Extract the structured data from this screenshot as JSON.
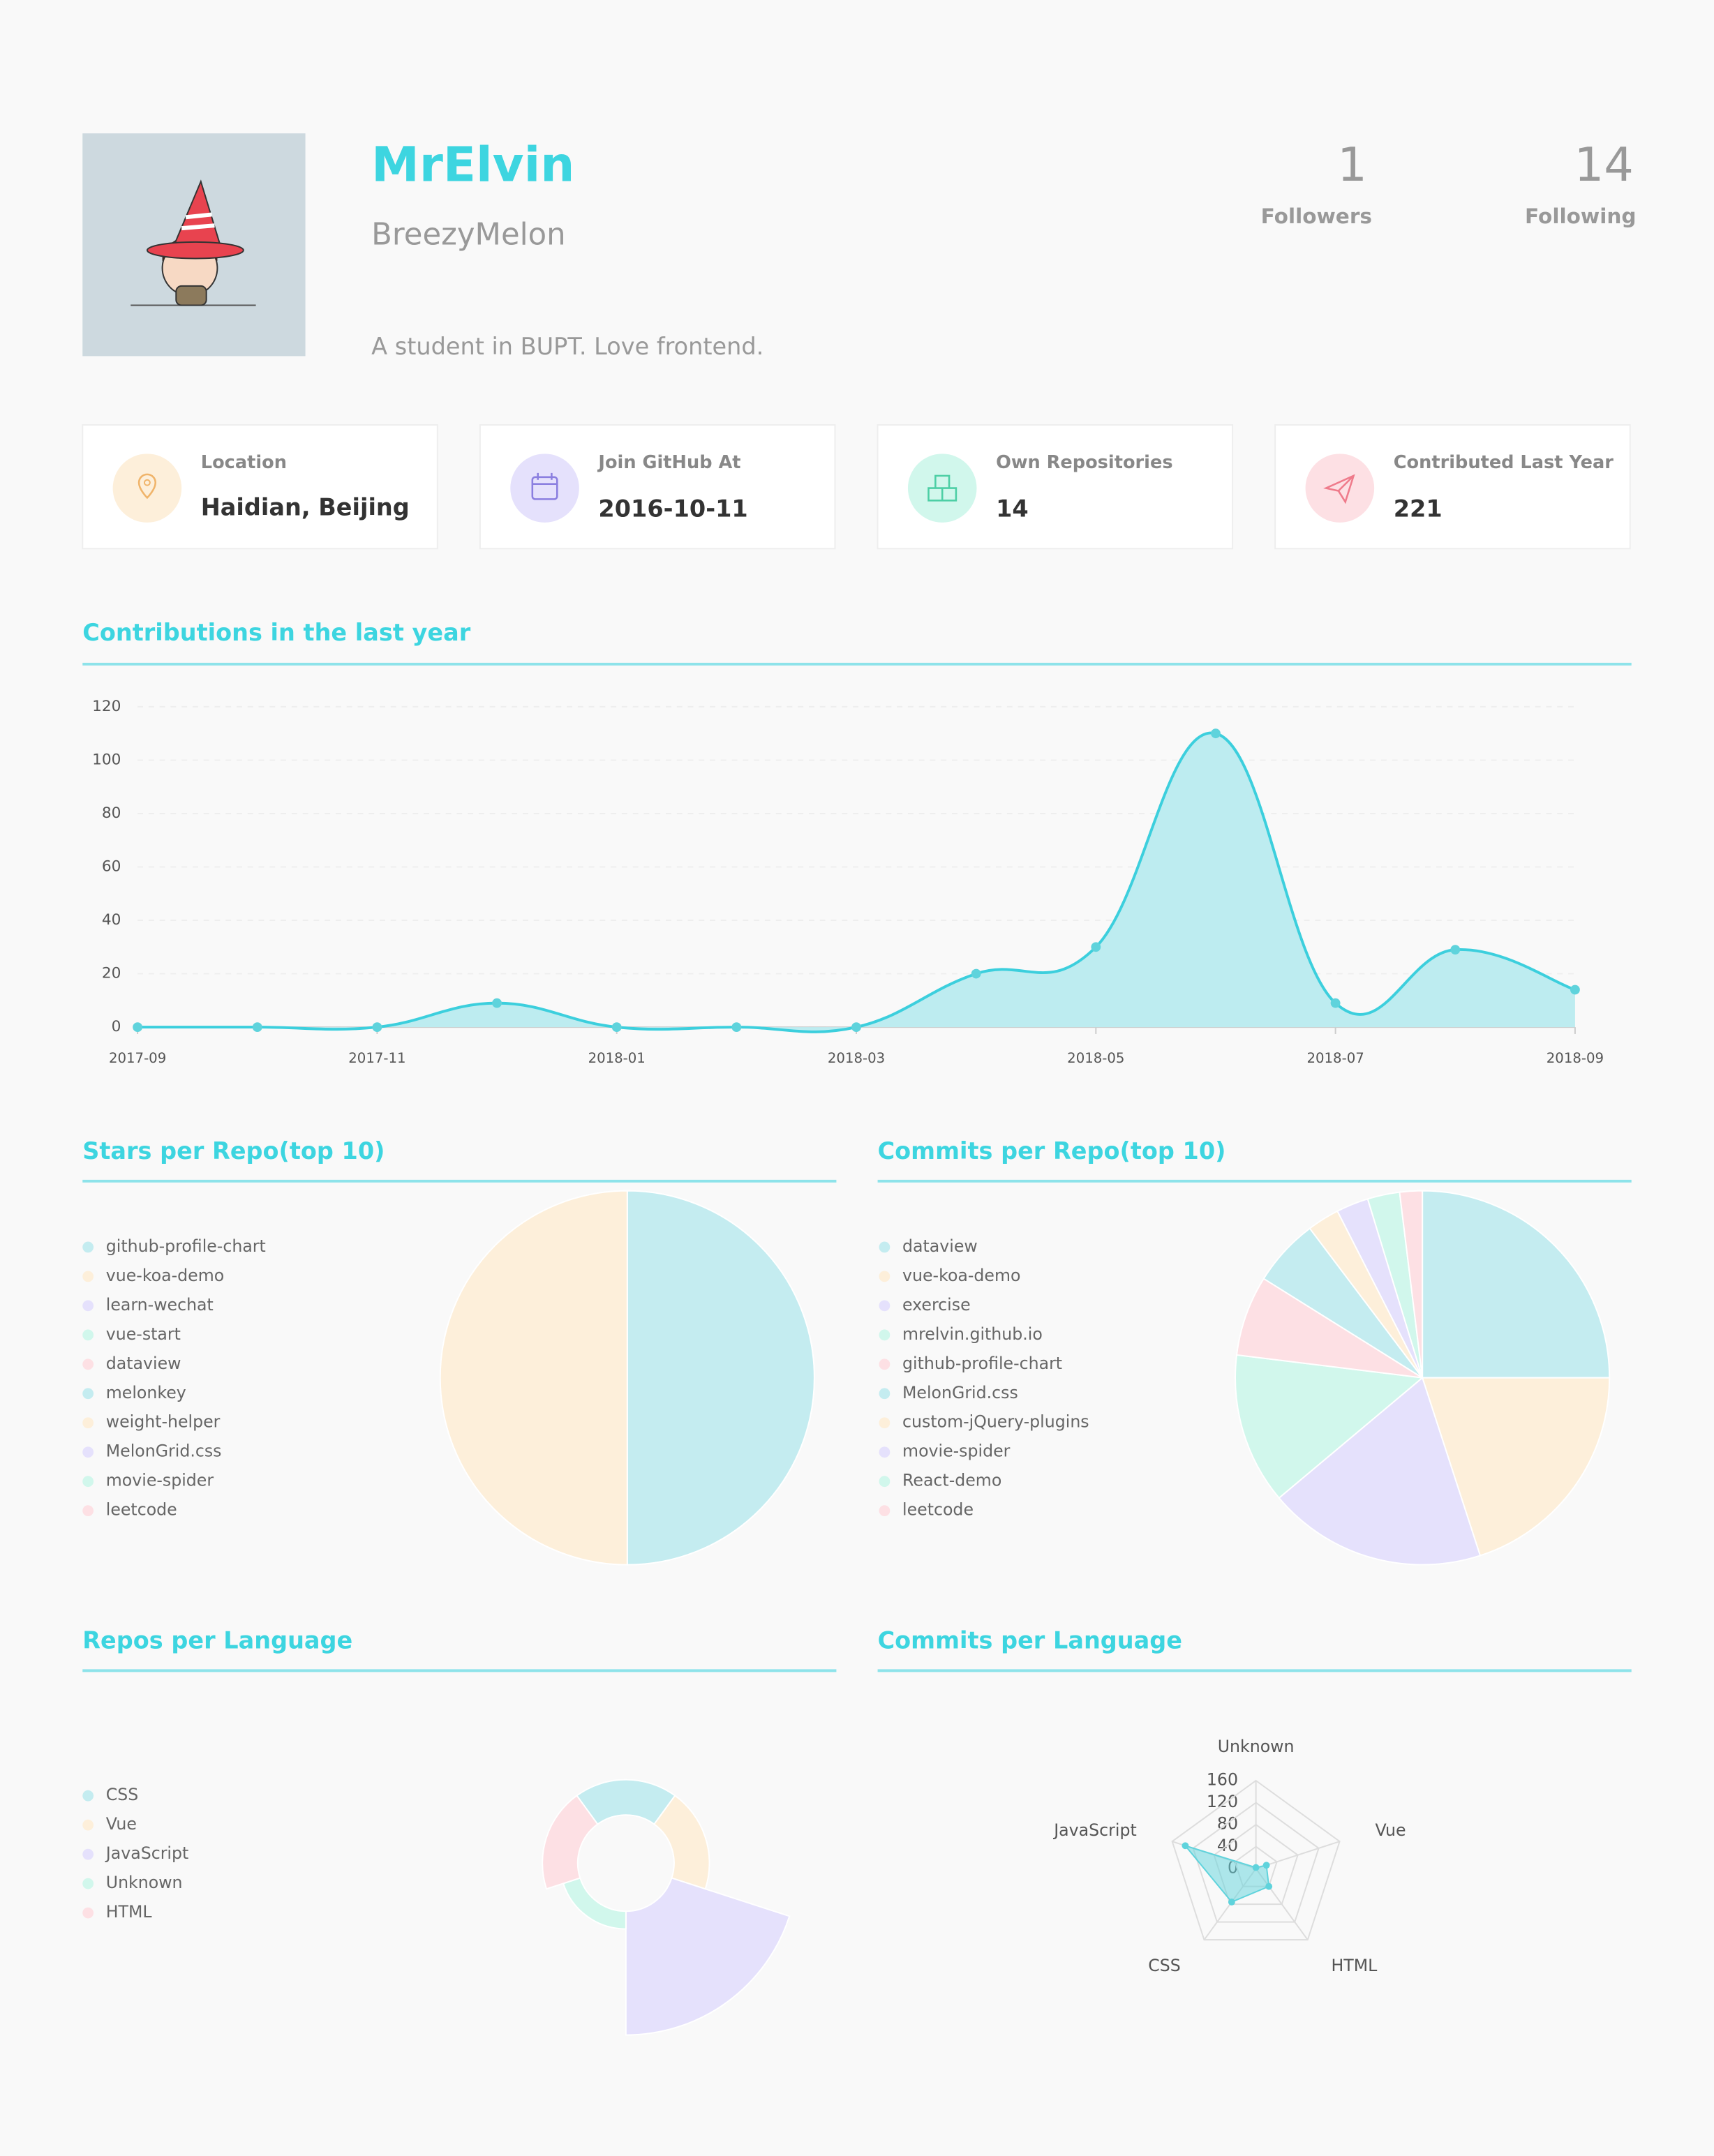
{
  "profile": {
    "name": "MrElvin",
    "login": "BreezyMelon",
    "bio": "A student in BUPT. Love frontend.",
    "followers": 1,
    "followers_label": "Followers",
    "following": 14,
    "following_label": "Following"
  },
  "cards": [
    {
      "label": "Location",
      "value": "Haidian, Beijing"
    },
    {
      "label": "Join GitHub At",
      "value": "2016-10-11"
    },
    {
      "label": "Own Repositories",
      "value": 14
    },
    {
      "label": "Contributed Last Year",
      "value": 221
    }
  ],
  "chart_data": [
    {
      "type": "line",
      "area": true,
      "title": "Contributions in the last year",
      "categories": [
        "2017-09",
        null,
        "2017-11",
        null,
        "2018-01",
        null,
        "2018-03",
        null,
        "2018-05",
        null,
        "2018-07",
        null,
        "2018-09"
      ],
      "values": [
        0,
        0,
        0,
        9,
        0,
        0,
        0,
        20,
        30,
        110,
        9,
        29,
        14
      ],
      "color": "#3ccfdd",
      "fill": "#bdecf0",
      "ylim": [
        0,
        120
      ],
      "yticks": [
        0,
        20,
        40,
        60,
        80,
        100,
        120
      ],
      "grid": true
    },
    {
      "type": "pie",
      "title": "Stars per Repo(top 10)",
      "categories": [
        "github-profile-chart",
        "vue-koa-demo",
        "learn-wechat",
        "vue-start",
        "dataview",
        "melonkey",
        "weight-helper",
        "MelonGrid.css",
        "movie-spider",
        "leetcode"
      ],
      "values": [
        1,
        1,
        0,
        0,
        0,
        0,
        0,
        0,
        0,
        0
      ],
      "colors": [
        "#c4ecf0",
        "#fdefda",
        "#e5e1fc",
        "#d1f7ec",
        "#fde0e4"
      ]
    },
    {
      "type": "pie",
      "title": "Commits per Repo(top 10)",
      "categories": [
        "dataview",
        "vue-koa-demo",
        "exercise",
        "mrelvin.github.io",
        "github-profile-chart",
        "MelonGrid.css",
        "custom-jQuery-plugins",
        "movie-spider",
        "React-demo",
        "leetcode"
      ],
      "values": [
        90,
        72,
        68,
        47,
        25,
        21,
        10,
        10,
        10,
        7
      ],
      "colors": [
        "#c4ecf0",
        "#fdefda",
        "#e5e1fc",
        "#d1f7ec",
        "#fde0e4"
      ]
    },
    {
      "type": "rose",
      "title": "Repos per Language",
      "categories": [
        "CSS",
        "Vue",
        "JavaScript",
        "Unknown",
        "HTML"
      ],
      "values": [
        2,
        2,
        7,
        1,
        2
      ],
      "colors": [
        "#c4ecf0",
        "#fdefda",
        "#e5e1fc",
        "#d1f7ec",
        "#fde0e4"
      ]
    },
    {
      "type": "radar",
      "title": "Commits per Language",
      "categories": [
        "Unknown",
        "Vue",
        "HTML",
        "CSS",
        "JavaScript"
      ],
      "values": [
        2,
        20,
        40,
        75,
        135
      ],
      "color": "#5fd3dc",
      "rlim": [
        0,
        160
      ],
      "rticks": [
        0,
        40,
        80,
        120,
        160
      ]
    }
  ]
}
